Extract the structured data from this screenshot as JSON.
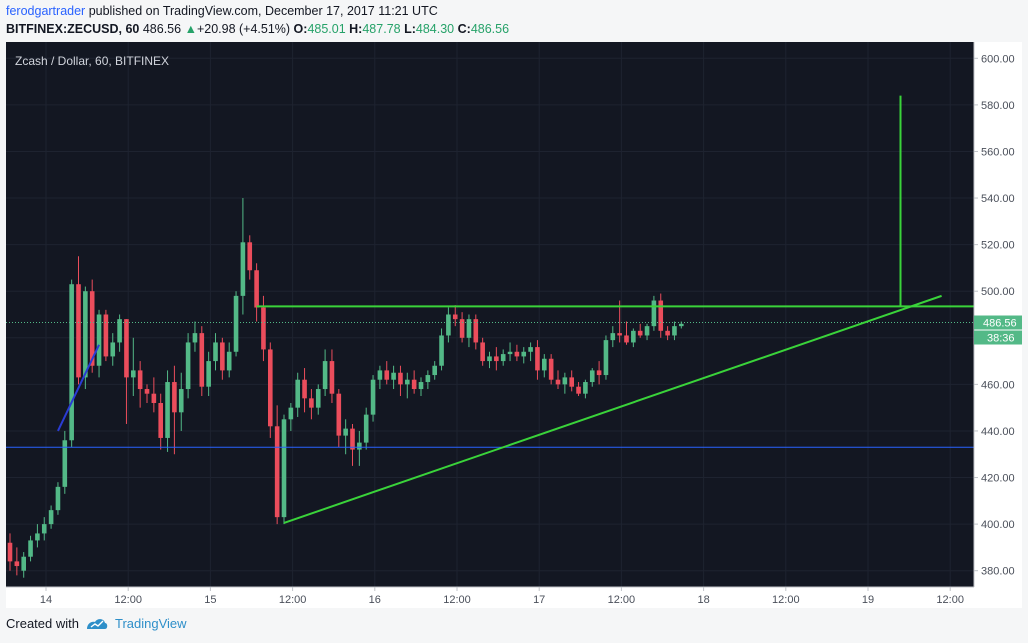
{
  "header": {
    "username": "ferodgartrader",
    "published_text": " published on TradingView.com, December 17, 2017 11:21 UTC",
    "symbol": "BITFINEX:ZECUSD, 60",
    "last": "486.56",
    "change_arrow": "▲",
    "change": "+20.98 (+4.51%)",
    "o_label": "O:",
    "o_value": "485.01",
    "h_label": "H:",
    "h_value": "487.78",
    "l_label": "L:",
    "l_value": "484.30",
    "c_label": "C:",
    "c_value": "486.56"
  },
  "chart_title": "Zcash / Dollar, 60, BITFINEX",
  "price_axis": {
    "labels": [
      "600.00",
      "580.00",
      "560.00",
      "540.00",
      "520.00",
      "500.00",
      "480.00",
      "460.00",
      "440.00",
      "420.00",
      "400.00",
      "380.00"
    ],
    "last_price_badge": "486.56",
    "countdown_badge": "38:36"
  },
  "time_axis": {
    "labels": [
      "14",
      "12:00",
      "15",
      "12:00",
      "16",
      "12:00",
      "17",
      "12:00",
      "18",
      "12:00",
      "19",
      "12:00"
    ]
  },
  "footer": {
    "created_with": "Created with",
    "brand": "TradingView"
  },
  "colors": {
    "background": "#131722",
    "bull": "#53b987",
    "bear": "#eb4d5c",
    "drawing": "#3ad33a",
    "hline": "#2962ff",
    "axis_text": "#131722"
  },
  "chart_data": {
    "type": "candlestick",
    "ylim": [
      373,
      607
    ],
    "note_series": "hourly OHLC approximations",
    "candles": [
      [
        0,
        392,
        396,
        380,
        384
      ],
      [
        1,
        384,
        390,
        378,
        382
      ],
      [
        2,
        380,
        388,
        377,
        386
      ],
      [
        3,
        386,
        395,
        384,
        393
      ],
      [
        4,
        393,
        400,
        390,
        396
      ],
      [
        5,
        396,
        403,
        393,
        400
      ],
      [
        6,
        400,
        408,
        398,
        406
      ],
      [
        7,
        406,
        418,
        404,
        416
      ],
      [
        8,
        416,
        440,
        413,
        436
      ],
      [
        9,
        436,
        505,
        433,
        503
      ],
      [
        10,
        503,
        515,
        460,
        463
      ],
      [
        11,
        463,
        502,
        458,
        500
      ],
      [
        12,
        500,
        505,
        465,
        468
      ],
      [
        13,
        468,
        492,
        463,
        490
      ],
      [
        14,
        490,
        492,
        470,
        472
      ],
      [
        15,
        472,
        482,
        468,
        478
      ],
      [
        16,
        478,
        490,
        474,
        488
      ],
      [
        17,
        488,
        488,
        443,
        463
      ],
      [
        18,
        463,
        480,
        455,
        466
      ],
      [
        19,
        466,
        470,
        450,
        458
      ],
      [
        20,
        458,
        460,
        452,
        456
      ],
      [
        21,
        456,
        463,
        448,
        452
      ],
      [
        22,
        452,
        456,
        432,
        437
      ],
      [
        23,
        437,
        466,
        431,
        461
      ],
      [
        24,
        461,
        468,
        430,
        448
      ],
      [
        25,
        448,
        465,
        440,
        458
      ],
      [
        26,
        458,
        482,
        454,
        478
      ],
      [
        27,
        478,
        487,
        474,
        482
      ],
      [
        28,
        482,
        485,
        455,
        459
      ],
      [
        29,
        459,
        474,
        455,
        470
      ],
      [
        30,
        470,
        482,
        466,
        478
      ],
      [
        31,
        478,
        480,
        462,
        466
      ],
      [
        32,
        466,
        478,
        463,
        474
      ],
      [
        33,
        474,
        500,
        472,
        498
      ],
      [
        34,
        498,
        540,
        490,
        521
      ],
      [
        35,
        521,
        524,
        505,
        509
      ],
      [
        36,
        509,
        512,
        487,
        493
      ],
      [
        37,
        493,
        498,
        470,
        475
      ],
      [
        38,
        475,
        478,
        437,
        442
      ],
      [
        39,
        442,
        451,
        400,
        403
      ],
      [
        40,
        403,
        447,
        400,
        445
      ],
      [
        41,
        445,
        452,
        440,
        450
      ],
      [
        42,
        450,
        465,
        446,
        462
      ],
      [
        43,
        462,
        467,
        448,
        454
      ],
      [
        44,
        454,
        458,
        445,
        450
      ],
      [
        45,
        450,
        460,
        447,
        458
      ],
      [
        46,
        458,
        475,
        455,
        470
      ],
      [
        47,
        470,
        475,
        452,
        456
      ],
      [
        48,
        456,
        458,
        433,
        438
      ],
      [
        49,
        438,
        445,
        430,
        441
      ],
      [
        50,
        441,
        443,
        425,
        432
      ],
      [
        51,
        432,
        440,
        425,
        435
      ],
      [
        52,
        435,
        450,
        432,
        447
      ],
      [
        53,
        447,
        464,
        444,
        462
      ],
      [
        54,
        462,
        468,
        458,
        466
      ],
      [
        55,
        466,
        470,
        460,
        462
      ],
      [
        56,
        462,
        468,
        458,
        465
      ],
      [
        57,
        465,
        468,
        455,
        460
      ],
      [
        58,
        460,
        465,
        454,
        462
      ],
      [
        59,
        462,
        466,
        456,
        458
      ],
      [
        60,
        458,
        463,
        455,
        461
      ],
      [
        61,
        461,
        466,
        458,
        464
      ],
      [
        62,
        464,
        470,
        462,
        468
      ],
      [
        63,
        468,
        484,
        466,
        481
      ],
      [
        64,
        481,
        493,
        478,
        490
      ],
      [
        65,
        490,
        494,
        485,
        488
      ],
      [
        66,
        488,
        491,
        478,
        480
      ],
      [
        67,
        480,
        490,
        476,
        488
      ],
      [
        68,
        488,
        490,
        475,
        478
      ],
      [
        69,
        478,
        480,
        468,
        470
      ],
      [
        70,
        470,
        474,
        467,
        472
      ],
      [
        71,
        472,
        476,
        466,
        470
      ],
      [
        72,
        470,
        475,
        468,
        473
      ],
      [
        73,
        473,
        478,
        470,
        474
      ],
      [
        74,
        474,
        477,
        470,
        472
      ],
      [
        75,
        472,
        476,
        469,
        474
      ],
      [
        76,
        474,
        478,
        470,
        476
      ],
      [
        77,
        476,
        479,
        462,
        466
      ],
      [
        78,
        466,
        473,
        463,
        471
      ],
      [
        79,
        471,
        473,
        460,
        462
      ],
      [
        80,
        462,
        466,
        458,
        460
      ],
      [
        81,
        460,
        465,
        456,
        463
      ],
      [
        82,
        463,
        466,
        457,
        459
      ],
      [
        83,
        459,
        461,
        455,
        456
      ],
      [
        84,
        456,
        462,
        454,
        461
      ],
      [
        85,
        461,
        467,
        459,
        466
      ],
      [
        86,
        466,
        470,
        460,
        464
      ],
      [
        87,
        464,
        481,
        462,
        479
      ],
      [
        88,
        479,
        485,
        476,
        482
      ],
      [
        89,
        482,
        496,
        478,
        481
      ],
      [
        90,
        481,
        487,
        477,
        478
      ],
      [
        91,
        478,
        484,
        476,
        483
      ],
      [
        92,
        483,
        486,
        480,
        481
      ],
      [
        93,
        481,
        486,
        479,
        485
      ],
      [
        94,
        485,
        498,
        483,
        496
      ],
      [
        95,
        496,
        499,
        480,
        483
      ],
      [
        96,
        483,
        485,
        479,
        481
      ],
      [
        97,
        481,
        487,
        479,
        485
      ],
      [
        98,
        485,
        487,
        484,
        486
      ]
    ],
    "hline_price": 433,
    "resistance_price": 493.5,
    "trendline": {
      "from_candle": 40,
      "from_price": 400.5,
      "to_candle": 136,
      "to_price": 498
    },
    "target": {
      "candle": 130,
      "from_price": 493.5,
      "to_price": 584
    },
    "resistance_span": {
      "from_candle": 36,
      "to_candle": 147
    }
  }
}
